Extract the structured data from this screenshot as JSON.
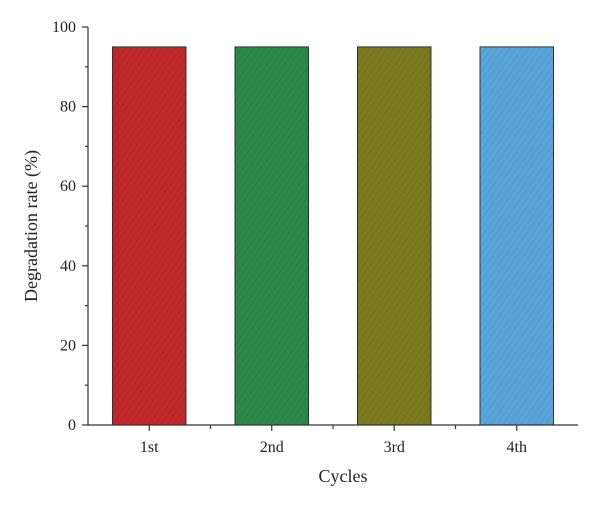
{
  "chart_data": {
    "type": "bar",
    "title": "",
    "xlabel": "Cycles",
    "ylabel": "Degradation rate (%)",
    "categories": [
      "1st",
      "2nd",
      "3rd",
      "4th"
    ],
    "values": [
      95,
      95,
      95,
      95
    ],
    "colors": [
      "#c0282a",
      "#2c8a48",
      "#7b7a1f",
      "#5aa6dc"
    ],
    "ylim": [
      0,
      100
    ],
    "yticks": [
      0,
      20,
      40,
      60,
      80,
      100
    ],
    "grid": false,
    "legend": "none"
  }
}
